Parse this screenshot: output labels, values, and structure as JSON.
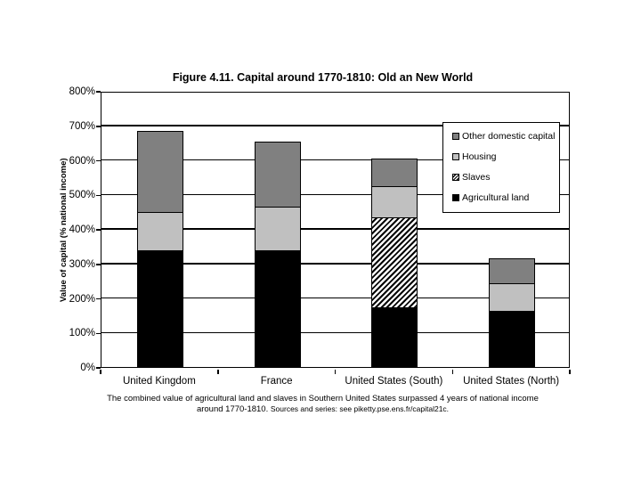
{
  "title": "Figure 4.11. Capital around 1770-1810: Old an New World",
  "chart_data": {
    "type": "bar",
    "stacked": true,
    "title": "Figure 4.11. Capital around 1770-1810: Old an New World",
    "ylabel": "Value of capital (% national income)",
    "xlabel": "",
    "ylim": [
      0,
      800
    ],
    "ytick_step": 100,
    "ytick_suffix": "%",
    "grid": true,
    "legend_position": "top-right",
    "categories": [
      "United Kingdom",
      "France",
      "United States (South)",
      "United States (North)"
    ],
    "series": [
      {
        "name": "Agricultural land",
        "values": [
          335,
          335,
          170,
          160
        ],
        "color": "#000000",
        "pattern": "solid"
      },
      {
        "name": "Slaves",
        "values": [
          0,
          0,
          260,
          0
        ],
        "color": "#ffffff",
        "pattern": "hatch"
      },
      {
        "name": "Housing",
        "values": [
          110,
          125,
          90,
          80
        ],
        "color": "#c0c0c0",
        "pattern": "solid"
      },
      {
        "name": "Other domestic capital",
        "values": [
          235,
          190,
          80,
          70
        ],
        "color": "#808080",
        "pattern": "solid"
      }
    ],
    "totals": [
      680,
      650,
      600,
      310
    ],
    "legend_order": [
      "Other domestic capital",
      "Housing",
      "Slaves",
      "Agricultural land"
    ]
  },
  "caption": {
    "line1": "The combined value of agricultural land and slaves in Southern United States surpassed 4 years of national income",
    "line2_prefix": "around 1770-1810.",
    "line2_source": "Sources and series: see piketty.pse.ens.fr/capital21c."
  }
}
